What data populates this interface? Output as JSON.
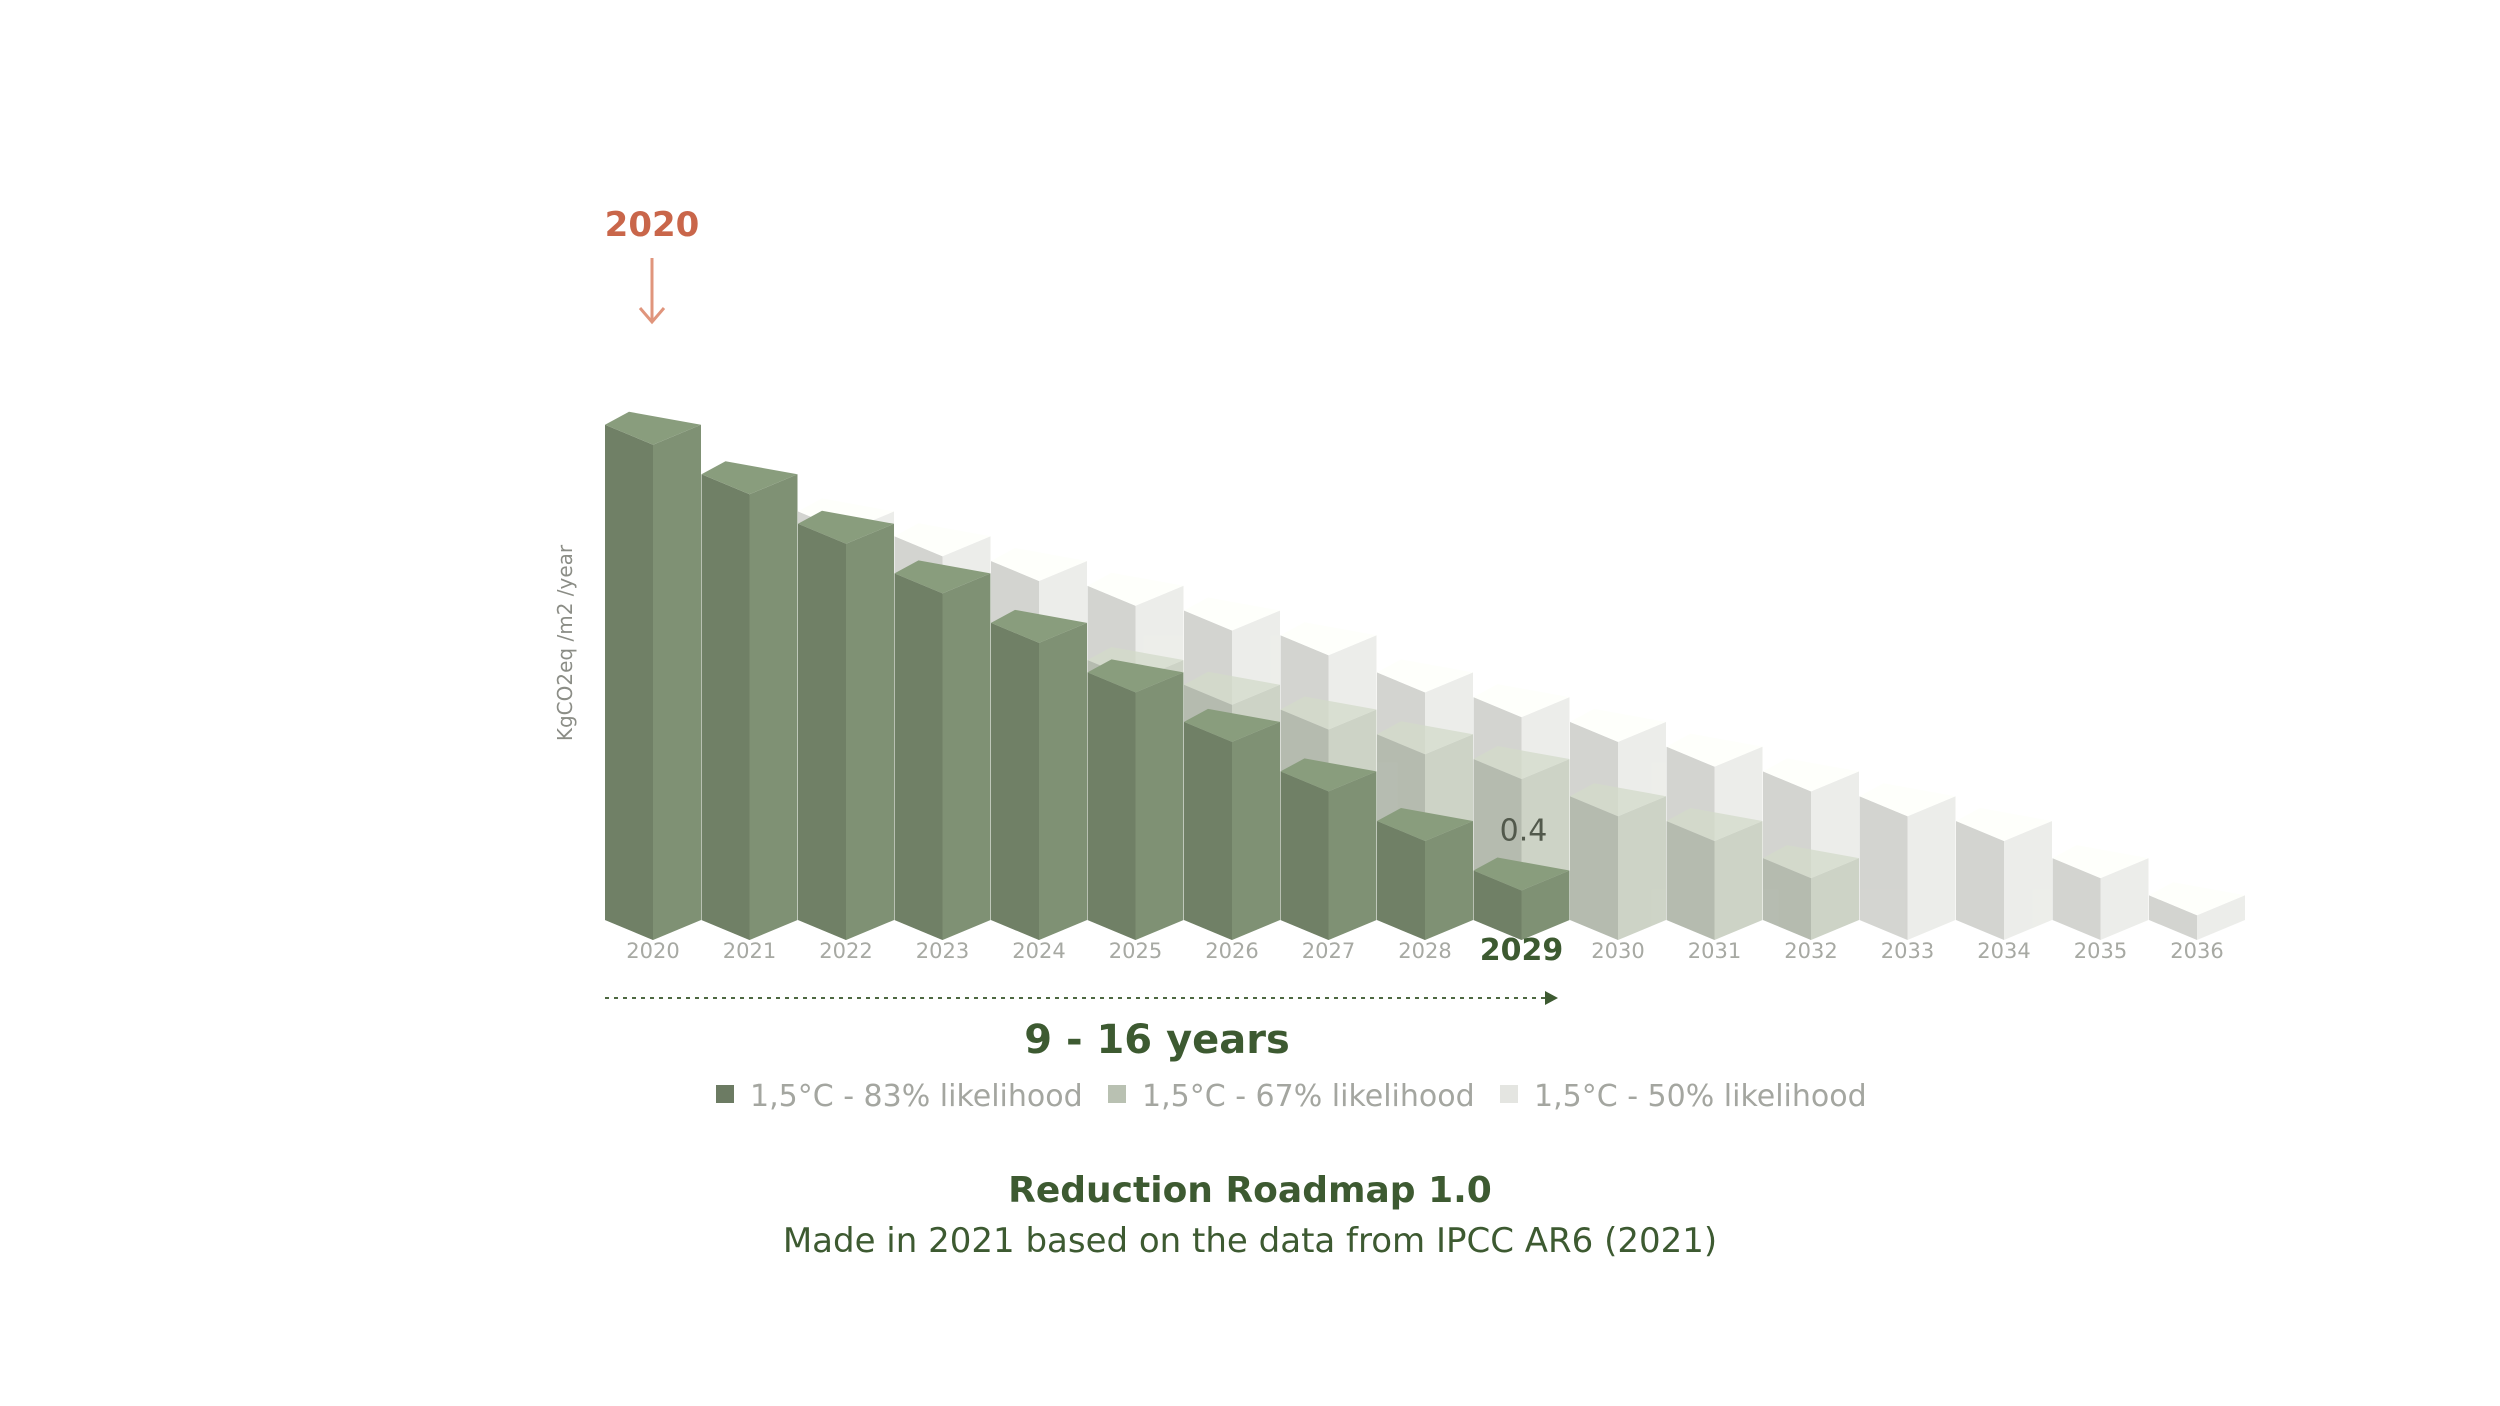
{
  "chart_data": {
    "type": "bar",
    "title": "Reduction Roadmap 1.0",
    "subtitle": "Made in 2021 based on the data from IPCC AR6 (2021)",
    "ylabel": "KgCO2eq /m2 /year",
    "categories": [
      "2020",
      "2021",
      "2022",
      "2023",
      "2024",
      "2025",
      "2026",
      "2027",
      "2028",
      "2029",
      "2030",
      "2031",
      "2032",
      "2033",
      "2034",
      "2035",
      "2036"
    ],
    "series": [
      {
        "name": "1,5°C - 83% likelihood",
        "color": "#7f9174",
        "values": [
          4.0,
          3.6,
          3.2,
          2.8,
          2.4,
          2.0,
          1.6,
          1.2,
          0.8,
          0.4,
          null,
          null,
          null,
          null,
          null,
          null,
          null
        ]
      },
      {
        "name": "1,5°C - 67% likelihood",
        "color": "#c3cbbb",
        "values": [
          3.1,
          2.9,
          2.7,
          2.5,
          2.3,
          2.1,
          1.9,
          1.7,
          1.5,
          1.3,
          1.0,
          0.8,
          0.5,
          null,
          null,
          null,
          null
        ]
      },
      {
        "name": "1,5°C - 50% likelihood",
        "color": "#ebece8",
        "values": [
          3.7,
          3.5,
          3.3,
          3.1,
          2.9,
          2.7,
          2.5,
          2.3,
          2.0,
          1.8,
          1.6,
          1.4,
          1.2,
          1.0,
          0.8,
          0.5,
          0.2
        ]
      }
    ],
    "ylim": [
      0,
      4.2
    ],
    "highlight_category": "2029",
    "start_marker": "2020",
    "data_labels": [
      {
        "category": "2029",
        "text": "0.4"
      }
    ],
    "span_annotation": "9 - 16 years",
    "legend_position": "bottom",
    "grid": false
  }
}
